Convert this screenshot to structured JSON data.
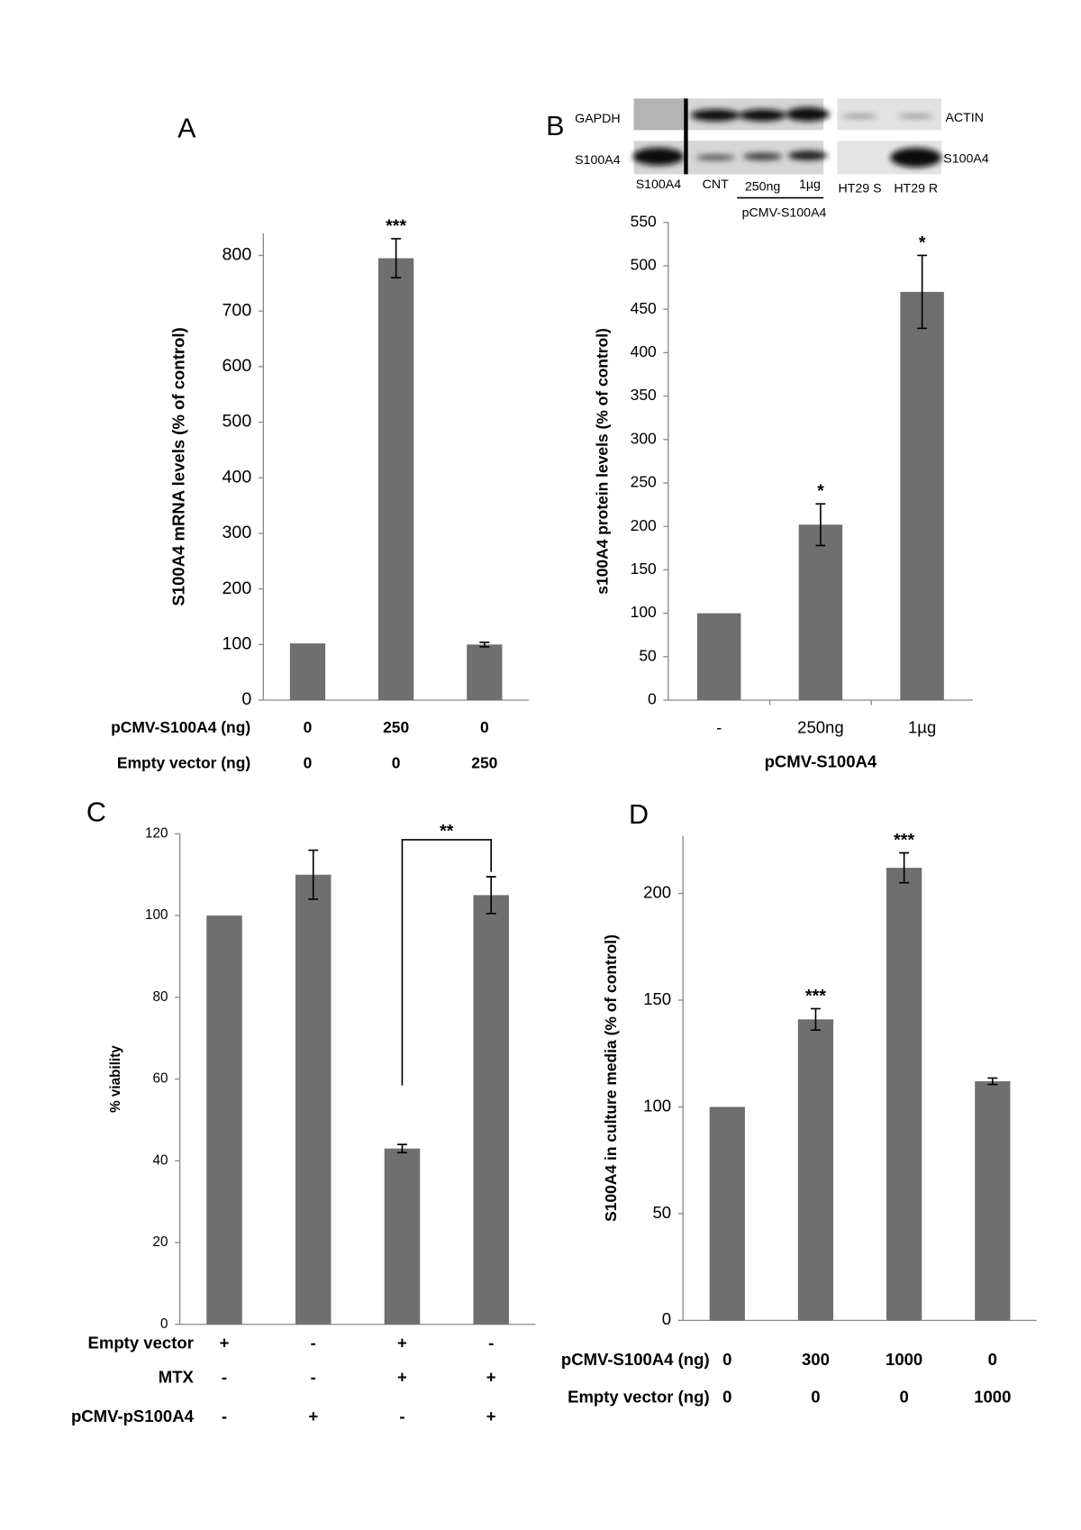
{
  "chart_data": [
    {
      "type": "bar",
      "panel": "A",
      "ylabel": "S100A4 mRNA levels (% of control)",
      "category_rows": [
        {
          "label": "pCMV-S100A4 (ng)",
          "values": [
            "0",
            "250",
            "0"
          ]
        },
        {
          "label": "Empty vector (ng)",
          "values": [
            "0",
            "0",
            "250"
          ]
        }
      ],
      "values": [
        102,
        795,
        100
      ],
      "errors": [
        null,
        35,
        4
      ],
      "annotations": [
        null,
        "***",
        null
      ],
      "color": "#6f6f6f",
      "ylim": [
        0,
        840
      ],
      "yticks": [
        0,
        100,
        200,
        300,
        400,
        500,
        600,
        700,
        800
      ]
    },
    {
      "type": "bar",
      "panel": "B",
      "ylabel": "s100A4 protein levels (% of control)",
      "xlabel": "pCMV-S100A4",
      "categories": [
        "-",
        "250ng",
        "1µg"
      ],
      "values": [
        100,
        202,
        470
      ],
      "errors": [
        null,
        24,
        42
      ],
      "annotations": [
        null,
        "*",
        "*"
      ],
      "color": "#6f6f6f",
      "ylim": [
        0,
        550
      ],
      "yticks": [
        0,
        50,
        100,
        150,
        200,
        250,
        300,
        350,
        400,
        450,
        500,
        550
      ]
    },
    {
      "type": "bar",
      "panel": "C",
      "ylabel": "% viability",
      "category_rows": [
        {
          "label": "Empty vector",
          "values": [
            "+",
            "-",
            "+",
            "-"
          ]
        },
        {
          "label": "MTX",
          "values": [
            "-",
            "-",
            "+",
            "+"
          ]
        },
        {
          "label": "pCMV-pS100A4",
          "values": [
            "-",
            "+",
            "-",
            "+"
          ]
        }
      ],
      "values": [
        100,
        110,
        43,
        105
      ],
      "errors": [
        null,
        6,
        1,
        4.5
      ],
      "comparison": {
        "between": [
          2,
          3
        ],
        "label": "**"
      },
      "color": "#6f6f6f",
      "ylim": [
        0,
        120
      ],
      "yticks": [
        0,
        20,
        40,
        60,
        80,
        100,
        120
      ]
    },
    {
      "type": "bar",
      "panel": "D",
      "ylabel": "S100A4 in culture media (% of control)",
      "category_rows": [
        {
          "label": "pCMV-S100A4 (ng)",
          "values": [
            "0",
            "300",
            "1000",
            "0"
          ]
        },
        {
          "label": "Empty vector (ng)",
          "values": [
            "0",
            "0",
            "0",
            "1000"
          ]
        }
      ],
      "values": [
        100,
        141,
        212,
        112
      ],
      "errors": [
        null,
        5,
        7,
        1.5
      ],
      "annotations": [
        null,
        "***",
        "***",
        null
      ],
      "color": "#6f6f6f",
      "ylim": [
        0,
        227
      ],
      "yticks": [
        0,
        50,
        100,
        150,
        200
      ]
    }
  ],
  "blot": {
    "left_rows": [
      "GAPDH",
      "S100A4"
    ],
    "right_rows": [
      "ACTIN",
      "S100A4"
    ],
    "lanes": [
      "S100A4",
      "CNT",
      "250ng",
      "1µg",
      "HT29 S",
      "HT29 R"
    ],
    "group_label": "pCMV-S100A4"
  }
}
